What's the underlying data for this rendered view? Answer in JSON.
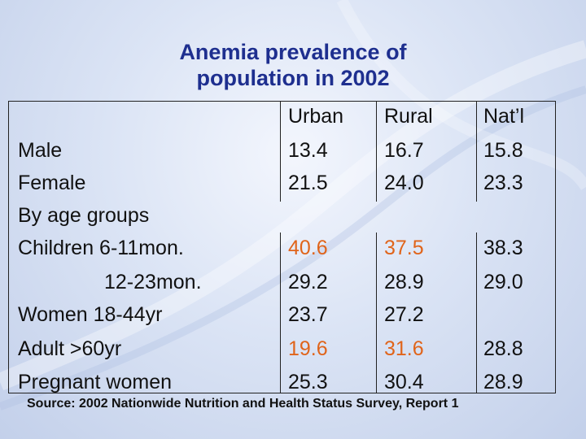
{
  "title_line1": "Anemia prevalence of",
  "title_line2": "population in 2002",
  "columns": {
    "urban": "Urban",
    "rural": "Rural",
    "natl": "Nat’l"
  },
  "rows": {
    "male": {
      "label": "Male",
      "urban": "13.4",
      "rural": "16.7",
      "natl": "15.8"
    },
    "female": {
      "label": "Female",
      "urban": "21.5",
      "rural": "24.0",
      "natl": "23.3"
    },
    "age_groups": {
      "label": "By age groups"
    },
    "children_6_11": {
      "label": "Children 6-11mon.",
      "urban": "40.6",
      "rural": "37.5",
      "natl": "38.3"
    },
    "children_12_23": {
      "label": "12-23mon.",
      "urban": "29.2",
      "rural": "28.9",
      "natl": "29.0"
    },
    "women_18_44": {
      "label": "Women 18-44yr",
      "urban": "23.7",
      "rural": "27.2"
    },
    "adult_60": {
      "label": "Adult >60yr",
      "urban": "19.6",
      "rural": "31.6",
      "natl": "28.8"
    },
    "pregnant": {
      "label": "Pregnant women",
      "urban": "25.3",
      "rural": "30.4",
      "natl": "28.9"
    }
  },
  "source": "Source: 2002 Nationwide Nutrition and Health Status Survey, Report 1",
  "colors": {
    "title": "#1e2f8f",
    "highlight": "#e0641a"
  }
}
